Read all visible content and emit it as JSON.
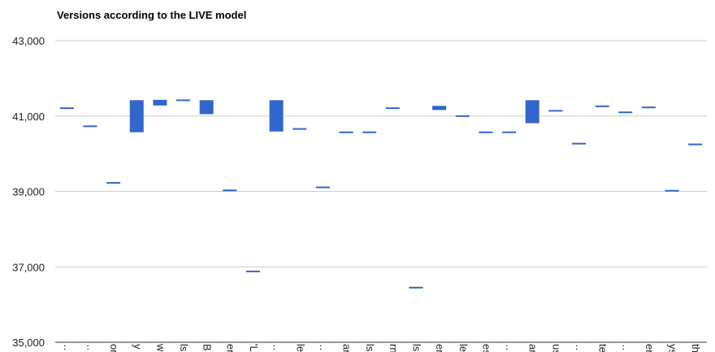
{
  "chart_data": {
    "type": "candlestick",
    "title": "Versions according to the LIVE model",
    "xlabel": "",
    "ylabel": "",
    "ylim": [
      35000,
      43000
    ],
    "yticks": [
      35000,
      37000,
      39000,
      41000,
      43000
    ],
    "ytick_labels": [
      "35,000",
      "37,000",
      "39,000",
      "41,000",
      "43,000"
    ],
    "grid": true,
    "legend": "none",
    "colors": {
      "bar": "#3366cc",
      "grid": "#cccccc",
      "axis": "#333333"
    },
    "categories": [
      "…",
      "…",
      "on",
      "y",
      "w",
      "ls",
      "B",
      "er",
      "'L",
      "…",
      "le",
      "…",
      "ar",
      "ls",
      "rn",
      "ls",
      "er",
      "le",
      "es",
      "…",
      "ar",
      "us",
      "…",
      "te",
      "…",
      "er",
      "ys",
      "th"
    ],
    "series": [
      {
        "open": 41200,
        "close": 41230
      },
      {
        "open": 40720,
        "close": 40750
      },
      {
        "open": 39220,
        "close": 39250
      },
      {
        "open": 40570,
        "close": 41420
      },
      {
        "open": 41280,
        "close": 41430
      },
      {
        "open": 41410,
        "close": 41440
      },
      {
        "open": 41050,
        "close": 41420
      },
      {
        "open": 39020,
        "close": 39050
      },
      {
        "open": 36870,
        "close": 36900
      },
      {
        "open": 40590,
        "close": 41420
      },
      {
        "open": 40650,
        "close": 40680
      },
      {
        "open": 39100,
        "close": 39130
      },
      {
        "open": 40560,
        "close": 40590
      },
      {
        "open": 40560,
        "close": 40590
      },
      {
        "open": 41200,
        "close": 41230
      },
      {
        "open": 36440,
        "close": 36470
      },
      {
        "open": 41160,
        "close": 41270
      },
      {
        "open": 40990,
        "close": 41020
      },
      {
        "open": 40560,
        "close": 40590
      },
      {
        "open": 40560,
        "close": 40590
      },
      {
        "open": 40810,
        "close": 41420
      },
      {
        "open": 41130,
        "close": 41160
      },
      {
        "open": 40260,
        "close": 40290
      },
      {
        "open": 41250,
        "close": 41280
      },
      {
        "open": 41090,
        "close": 41120
      },
      {
        "open": 41220,
        "close": 41250
      },
      {
        "open": 39010,
        "close": 39040
      },
      {
        "open": 40240,
        "close": 40270
      }
    ]
  }
}
